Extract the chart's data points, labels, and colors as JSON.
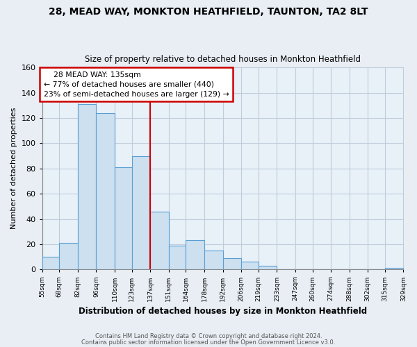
{
  "title": "28, MEAD WAY, MONKTON HEATHFIELD, TAUNTON, TA2 8LT",
  "subtitle": "Size of property relative to detached houses in Monkton Heathfield",
  "xlabel": "Distribution of detached houses by size in Monkton Heathfield",
  "ylabel": "Number of detached properties",
  "bar_edges": [
    55,
    68,
    82,
    96,
    110,
    123,
    137,
    151,
    164,
    178,
    192,
    206,
    219,
    233,
    247,
    260,
    274,
    288,
    302,
    315,
    329
  ],
  "bar_heights": [
    10,
    21,
    131,
    124,
    81,
    90,
    46,
    19,
    23,
    15,
    9,
    6,
    3,
    0,
    0,
    0,
    0,
    0,
    0,
    1
  ],
  "bar_color": "#cce0f0",
  "bar_edge_color": "#5a9fd4",
  "vline_x": 137,
  "vline_color": "#cc0000",
  "annotation_title": "28 MEAD WAY: 135sqm",
  "annotation_line1": "← 77% of detached houses are smaller (440)",
  "annotation_line2": "23% of semi-detached houses are larger (129) →",
  "annotation_box_facecolor": "white",
  "annotation_box_edgecolor": "#cc0000",
  "ylim": [
    0,
    160
  ],
  "yticks": [
    0,
    20,
    40,
    60,
    80,
    100,
    120,
    140,
    160
  ],
  "tick_labels": [
    "55sqm",
    "68sqm",
    "82sqm",
    "96sqm",
    "110sqm",
    "123sqm",
    "137sqm",
    "151sqm",
    "164sqm",
    "178sqm",
    "192sqm",
    "206sqm",
    "219sqm",
    "233sqm",
    "247sqm",
    "260sqm",
    "274sqm",
    "288sqm",
    "302sqm",
    "315sqm",
    "329sqm"
  ],
  "footer1": "Contains HM Land Registry data © Crown copyright and database right 2024.",
  "footer2": "Contains public sector information licensed under the Open Government Licence v3.0.",
  "bg_color": "#e8eef4",
  "plot_bg_color": "#e8f0f8",
  "grid_color": "#c0ccda"
}
